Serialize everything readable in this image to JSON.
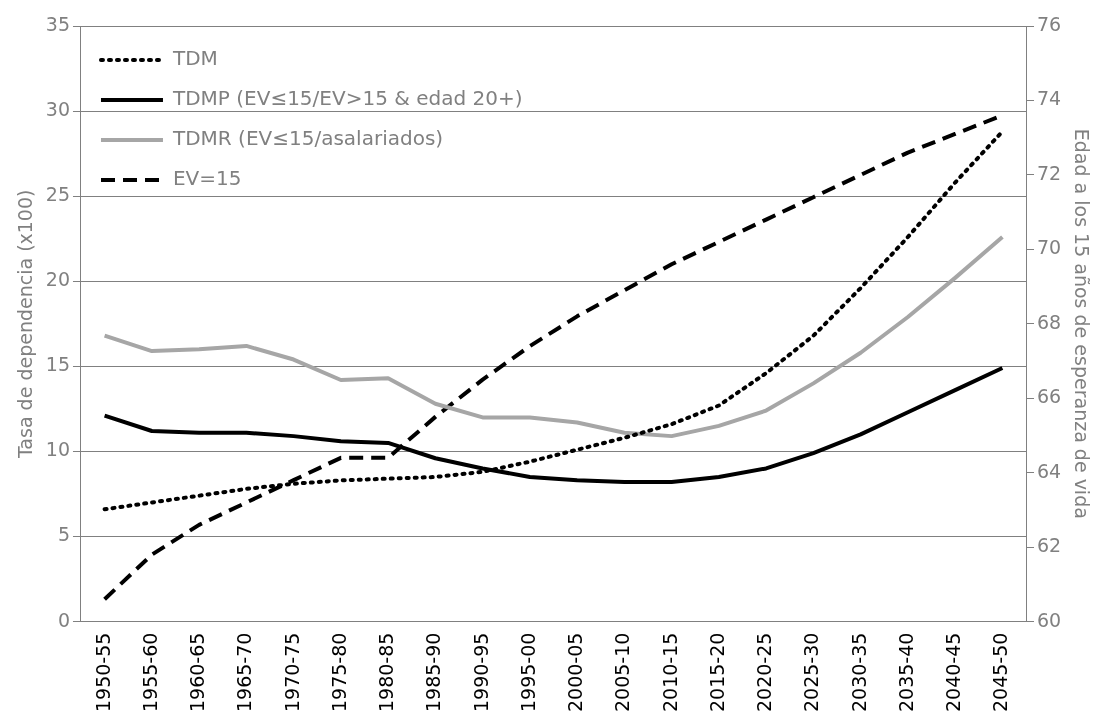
{
  "chart_data": {
    "type": "line",
    "ylabel": "Tasa de dependencia (x100)",
    "y2label": "Edad a los 15 años de esperanza de vida",
    "categories": [
      "1950-55",
      "1955-60",
      "1960-65",
      "1965-70",
      "1970-75",
      "1975-80",
      "1980-85",
      "1985-90",
      "1990-95",
      "1995-00",
      "2000-05",
      "2005-10",
      "2010-15",
      "2015-20",
      "2020-25",
      "2025-30",
      "2030-35",
      "2035-40",
      "2040-45",
      "2045-50"
    ],
    "series": [
      {
        "name": "TDM",
        "color": "#000000",
        "line_style": "dotted",
        "values": [
          6.6,
          7.0,
          7.4,
          7.8,
          8.1,
          8.3,
          8.4,
          8.5,
          8.8,
          9.4,
          10.1,
          10.8,
          11.6,
          12.7,
          14.6,
          16.8,
          19.6,
          22.6,
          25.8,
          28.8
        ]
      },
      {
        "name": "TDMP (EV≤15/EV>15 & edad 20+)",
        "color": "#000000",
        "line_style": "solid",
        "values": [
          12.1,
          11.2,
          11.1,
          11.1,
          10.9,
          10.6,
          10.5,
          9.6,
          9.0,
          8.5,
          8.3,
          8.2,
          8.2,
          8.5,
          9.0,
          9.9,
          11.0,
          12.3,
          13.6,
          14.9
        ]
      },
      {
        "name": "TDMR (EV≤15/asalariados)",
        "color": "#a6a6a6",
        "line_style": "solid",
        "values": [
          16.8,
          15.9,
          16.0,
          16.2,
          15.4,
          14.2,
          14.3,
          12.8,
          12.0,
          12.0,
          11.7,
          11.1,
          10.9,
          11.5,
          12.4,
          14.0,
          15.8,
          17.9,
          20.2,
          22.6
        ]
      },
      {
        "name": "EV=15",
        "color": "#000000",
        "line_style": "dashed",
        "axis": "y2",
        "values": [
          60.6,
          61.8,
          62.6,
          63.2,
          63.8,
          64.4,
          64.4,
          65.5,
          66.5,
          67.4,
          68.2,
          68.9,
          69.6,
          70.2,
          70.8,
          71.4,
          72.0,
          72.6,
          73.1,
          73.6
        ]
      }
    ],
    "ylim": [
      0,
      35
    ],
    "yticks": [
      0,
      5,
      10,
      15,
      20,
      25,
      30,
      35
    ],
    "y2lim": [
      60,
      76
    ],
    "y2ticks": [
      60,
      62,
      64,
      66,
      68,
      70,
      72,
      74,
      76
    ],
    "grid": "y",
    "legend": "top left",
    "marker": "none"
  }
}
